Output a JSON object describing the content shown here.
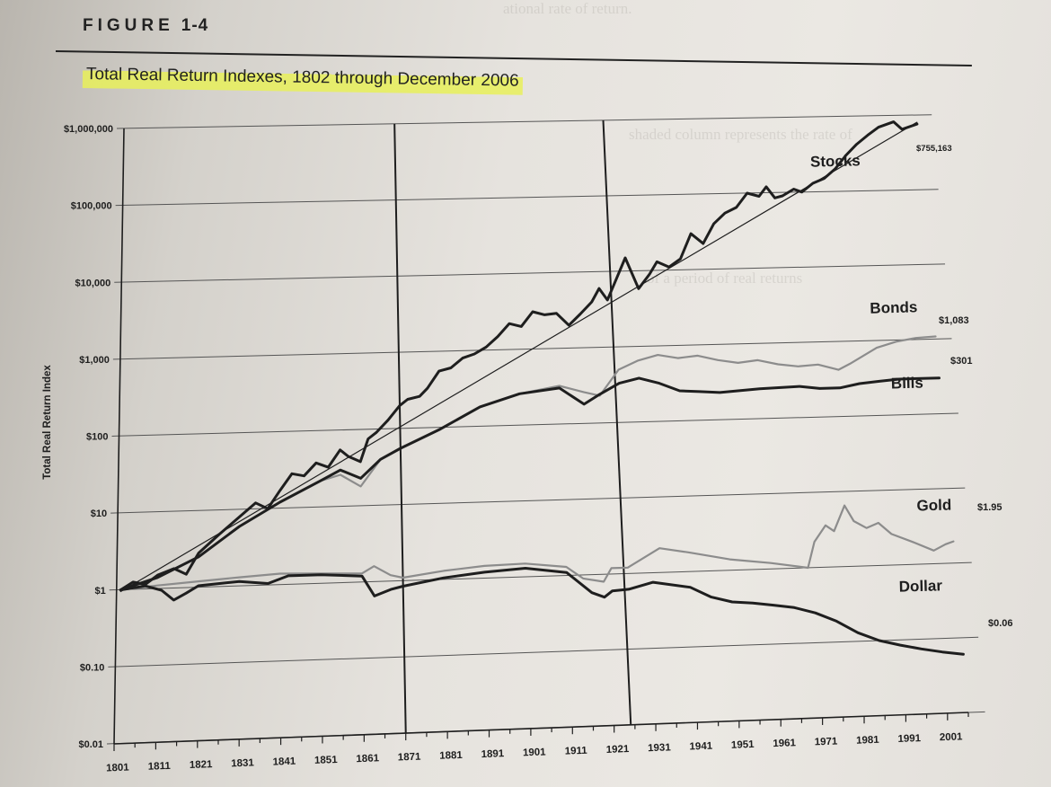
{
  "figure": {
    "label": "FIGURE",
    "number": "1-4",
    "title": "Total Real Return Indexes, 1802 through December 2006"
  },
  "colors": {
    "ink": "#1e1e1e",
    "gray_line": "#8c8c8c",
    "highlight": "#e8f05a",
    "paper": "#e6e3de"
  },
  "chart_data": {
    "type": "line",
    "title": "Total Real Return Indexes, 1802 through December 2006",
    "xlabel": "",
    "ylabel": "Total Real Return Index",
    "yscale": "log",
    "xlim": [
      1801,
      2006
    ],
    "ylim": [
      0.01,
      1000000
    ],
    "x_ticks": [
      1801,
      1811,
      1821,
      1831,
      1841,
      1851,
      1861,
      1871,
      1881,
      1891,
      1901,
      1911,
      1921,
      1931,
      1941,
      1951,
      1961,
      1971,
      1981,
      1991,
      2001
    ],
    "y_ticks": [
      {
        "value": 1000000,
        "label": "$1,000,000"
      },
      {
        "value": 100000,
        "label": "$100,000"
      },
      {
        "value": 10000,
        "label": "$10,000"
      },
      {
        "value": 1000,
        "label": "$1,000"
      },
      {
        "value": 100,
        "label": "$100"
      },
      {
        "value": 10,
        "label": "$10"
      },
      {
        "value": 1,
        "label": "$1"
      },
      {
        "value": 0.1,
        "label": "$0.10"
      },
      {
        "value": 0.01,
        "label": "$0.01"
      }
    ],
    "vertical_markers": [
      1871,
      1925
    ],
    "grid": "horizontal",
    "series": [
      {
        "name": "Stocks",
        "end_label": "$755,163",
        "color": "#1e1e1e",
        "width": 3,
        "points": [
          [
            1802,
            1
          ],
          [
            1805,
            1.25
          ],
          [
            1808,
            1.15
          ],
          [
            1811,
            1.5
          ],
          [
            1815,
            1.8
          ],
          [
            1818,
            1.5
          ],
          [
            1821,
            2.8
          ],
          [
            1826,
            4.8
          ],
          [
            1831,
            8
          ],
          [
            1835,
            12
          ],
          [
            1838,
            10
          ],
          [
            1841,
            17
          ],
          [
            1844,
            28
          ],
          [
            1847,
            26
          ],
          [
            1850,
            38
          ],
          [
            1853,
            33
          ],
          [
            1856,
            55
          ],
          [
            1858,
            45
          ],
          [
            1861,
            38
          ],
          [
            1863,
            75
          ],
          [
            1865,
            90
          ],
          [
            1868,
            130
          ],
          [
            1871,
            200
          ],
          [
            1873,
            240
          ],
          [
            1876,
            260
          ],
          [
            1878,
            330
          ],
          [
            1881,
            550
          ],
          [
            1884,
            600
          ],
          [
            1887,
            800
          ],
          [
            1890,
            900
          ],
          [
            1893,
            1100
          ],
          [
            1896,
            1500
          ],
          [
            1899,
            2200
          ],
          [
            1902,
            2000
          ],
          [
            1905,
            3100
          ],
          [
            1908,
            2800
          ],
          [
            1911,
            2900
          ],
          [
            1914,
            2000
          ],
          [
            1917,
            2800
          ],
          [
            1920,
            4000
          ],
          [
            1922,
            6000
          ],
          [
            1924,
            4200
          ],
          [
            1926,
            7000
          ],
          [
            1929,
            15000
          ],
          [
            1932,
            5800
          ],
          [
            1935,
            9000
          ],
          [
            1937,
            13000
          ],
          [
            1940,
            11000
          ],
          [
            1943,
            14000
          ],
          [
            1946,
            30000
          ],
          [
            1949,
            22000
          ],
          [
            1952,
            40000
          ],
          [
            1955,
            55000
          ],
          [
            1958,
            65000
          ],
          [
            1961,
            100000
          ],
          [
            1964,
            90000
          ],
          [
            1966,
            120000
          ],
          [
            1968,
            85000
          ],
          [
            1970,
            90000
          ],
          [
            1973,
            110000
          ],
          [
            1975,
            100000
          ],
          [
            1978,
            130000
          ],
          [
            1981,
            150000
          ],
          [
            1984,
            200000
          ],
          [
            1987,
            300000
          ],
          [
            1990,
            420000
          ],
          [
            1993,
            550000
          ],
          [
            1996,
            700000
          ],
          [
            2000,
            820000
          ],
          [
            2002,
            650000
          ],
          [
            2006,
            755163
          ]
        ]
      },
      {
        "name": "Stocks trend",
        "color": "#1e1e1e",
        "width": 1.2,
        "points": [
          [
            1802,
            0.95
          ],
          [
            2006,
            800000
          ]
        ]
      },
      {
        "name": "Bonds",
        "end_label": "$1,083",
        "color": "#8c8c8c",
        "width": 2.2,
        "points": [
          [
            1802,
            1
          ],
          [
            1811,
            1.4
          ],
          [
            1821,
            2.5
          ],
          [
            1831,
            6
          ],
          [
            1841,
            12
          ],
          [
            1851,
            22
          ],
          [
            1856,
            26
          ],
          [
            1861,
            18
          ],
          [
            1866,
            40
          ],
          [
            1871,
            55
          ],
          [
            1881,
            95
          ],
          [
            1891,
            180
          ],
          [
            1901,
            260
          ],
          [
            1911,
            320
          ],
          [
            1917,
            260
          ],
          [
            1921,
            230
          ],
          [
            1926,
            500
          ],
          [
            1931,
            650
          ],
          [
            1936,
            760
          ],
          [
            1941,
            680
          ],
          [
            1946,
            720
          ],
          [
            1951,
            620
          ],
          [
            1956,
            560
          ],
          [
            1961,
            600
          ],
          [
            1966,
            520
          ],
          [
            1971,
            480
          ],
          [
            1976,
            500
          ],
          [
            1981,
            420
          ],
          [
            1984,
            500
          ],
          [
            1991,
            800
          ],
          [
            1996,
            950
          ],
          [
            2001,
            1050
          ],
          [
            2006,
            1083
          ]
        ]
      },
      {
        "name": "Bills",
        "end_label": "$301",
        "color": "#1e1e1e",
        "width": 3,
        "points": [
          [
            1802,
            1
          ],
          [
            1811,
            1.4
          ],
          [
            1821,
            2.5
          ],
          [
            1831,
            6
          ],
          [
            1841,
            12
          ],
          [
            1851,
            22
          ],
          [
            1856,
            30
          ],
          [
            1861,
            23
          ],
          [
            1866,
            40
          ],
          [
            1871,
            55
          ],
          [
            1881,
            95
          ],
          [
            1891,
            180
          ],
          [
            1901,
            260
          ],
          [
            1911,
            300
          ],
          [
            1917,
            180
          ],
          [
            1921,
            240
          ],
          [
            1926,
            330
          ],
          [
            1931,
            380
          ],
          [
            1936,
            320
          ],
          [
            1941,
            250
          ],
          [
            1946,
            240
          ],
          [
            1951,
            230
          ],
          [
            1961,
            250
          ],
          [
            1971,
            260
          ],
          [
            1976,
            240
          ],
          [
            1981,
            240
          ],
          [
            1986,
            270
          ],
          [
            1991,
            285
          ],
          [
            1996,
            300
          ],
          [
            2006,
            301
          ]
        ]
      },
      {
        "name": "Gold",
        "end_label": "$1.95",
        "color": "#8c8c8c",
        "width": 2.2,
        "points": [
          [
            1802,
            1
          ],
          [
            1811,
            1.1
          ],
          [
            1821,
            1.2
          ],
          [
            1831,
            1.3
          ],
          [
            1841,
            1.4
          ],
          [
            1851,
            1.35
          ],
          [
            1861,
            1.3
          ],
          [
            1864,
            1.6
          ],
          [
            1868,
            1.2
          ],
          [
            1871,
            1.1
          ],
          [
            1881,
            1.3
          ],
          [
            1891,
            1.45
          ],
          [
            1901,
            1.5
          ],
          [
            1911,
            1.3
          ],
          [
            1915,
            0.9
          ],
          [
            1920,
            0.8
          ],
          [
            1922,
            1.2
          ],
          [
            1926,
            1.2
          ],
          [
            1934,
            2.1
          ],
          [
            1941,
            1.8
          ],
          [
            1951,
            1.4
          ],
          [
            1961,
            1.2
          ],
          [
            1970,
            1.0
          ],
          [
            1972,
            2.2
          ],
          [
            1975,
            3.6
          ],
          [
            1977,
            3.0
          ],
          [
            1980,
            6.5
          ],
          [
            1982,
            4.0
          ],
          [
            1985,
            3.2
          ],
          [
            1988,
            3.7
          ],
          [
            1991,
            2.6
          ],
          [
            1996,
            2.0
          ],
          [
            2001,
            1.5
          ],
          [
            2004,
            1.8
          ],
          [
            2006,
            1.95
          ]
        ]
      },
      {
        "name": "Dollar",
        "end_label": "$0.06",
        "color": "#1e1e1e",
        "width": 3,
        "points": [
          [
            1802,
            1
          ],
          [
            1808,
            1.1
          ],
          [
            1812,
            0.95
          ],
          [
            1815,
            0.7
          ],
          [
            1818,
            0.85
          ],
          [
            1821,
            1.05
          ],
          [
            1831,
            1.15
          ],
          [
            1838,
            1.05
          ],
          [
            1843,
            1.3
          ],
          [
            1851,
            1.3
          ],
          [
            1861,
            1.2
          ],
          [
            1864,
            0.65
          ],
          [
            1868,
            0.78
          ],
          [
            1871,
            0.85
          ],
          [
            1881,
            1.05
          ],
          [
            1891,
            1.2
          ],
          [
            1901,
            1.3
          ],
          [
            1911,
            1.1
          ],
          [
            1917,
            0.58
          ],
          [
            1920,
            0.5
          ],
          [
            1922,
            0.6
          ],
          [
            1926,
            0.62
          ],
          [
            1932,
            0.75
          ],
          [
            1941,
            0.62
          ],
          [
            1946,
            0.45
          ],
          [
            1951,
            0.38
          ],
          [
            1956,
            0.36
          ],
          [
            1961,
            0.33
          ],
          [
            1966,
            0.3
          ],
          [
            1971,
            0.25
          ],
          [
            1976,
            0.19
          ],
          [
            1981,
            0.13
          ],
          [
            1986,
            0.1
          ],
          [
            1991,
            0.085
          ],
          [
            1996,
            0.074
          ],
          [
            2001,
            0.066
          ],
          [
            2006,
            0.06
          ]
        ]
      }
    ]
  }
}
